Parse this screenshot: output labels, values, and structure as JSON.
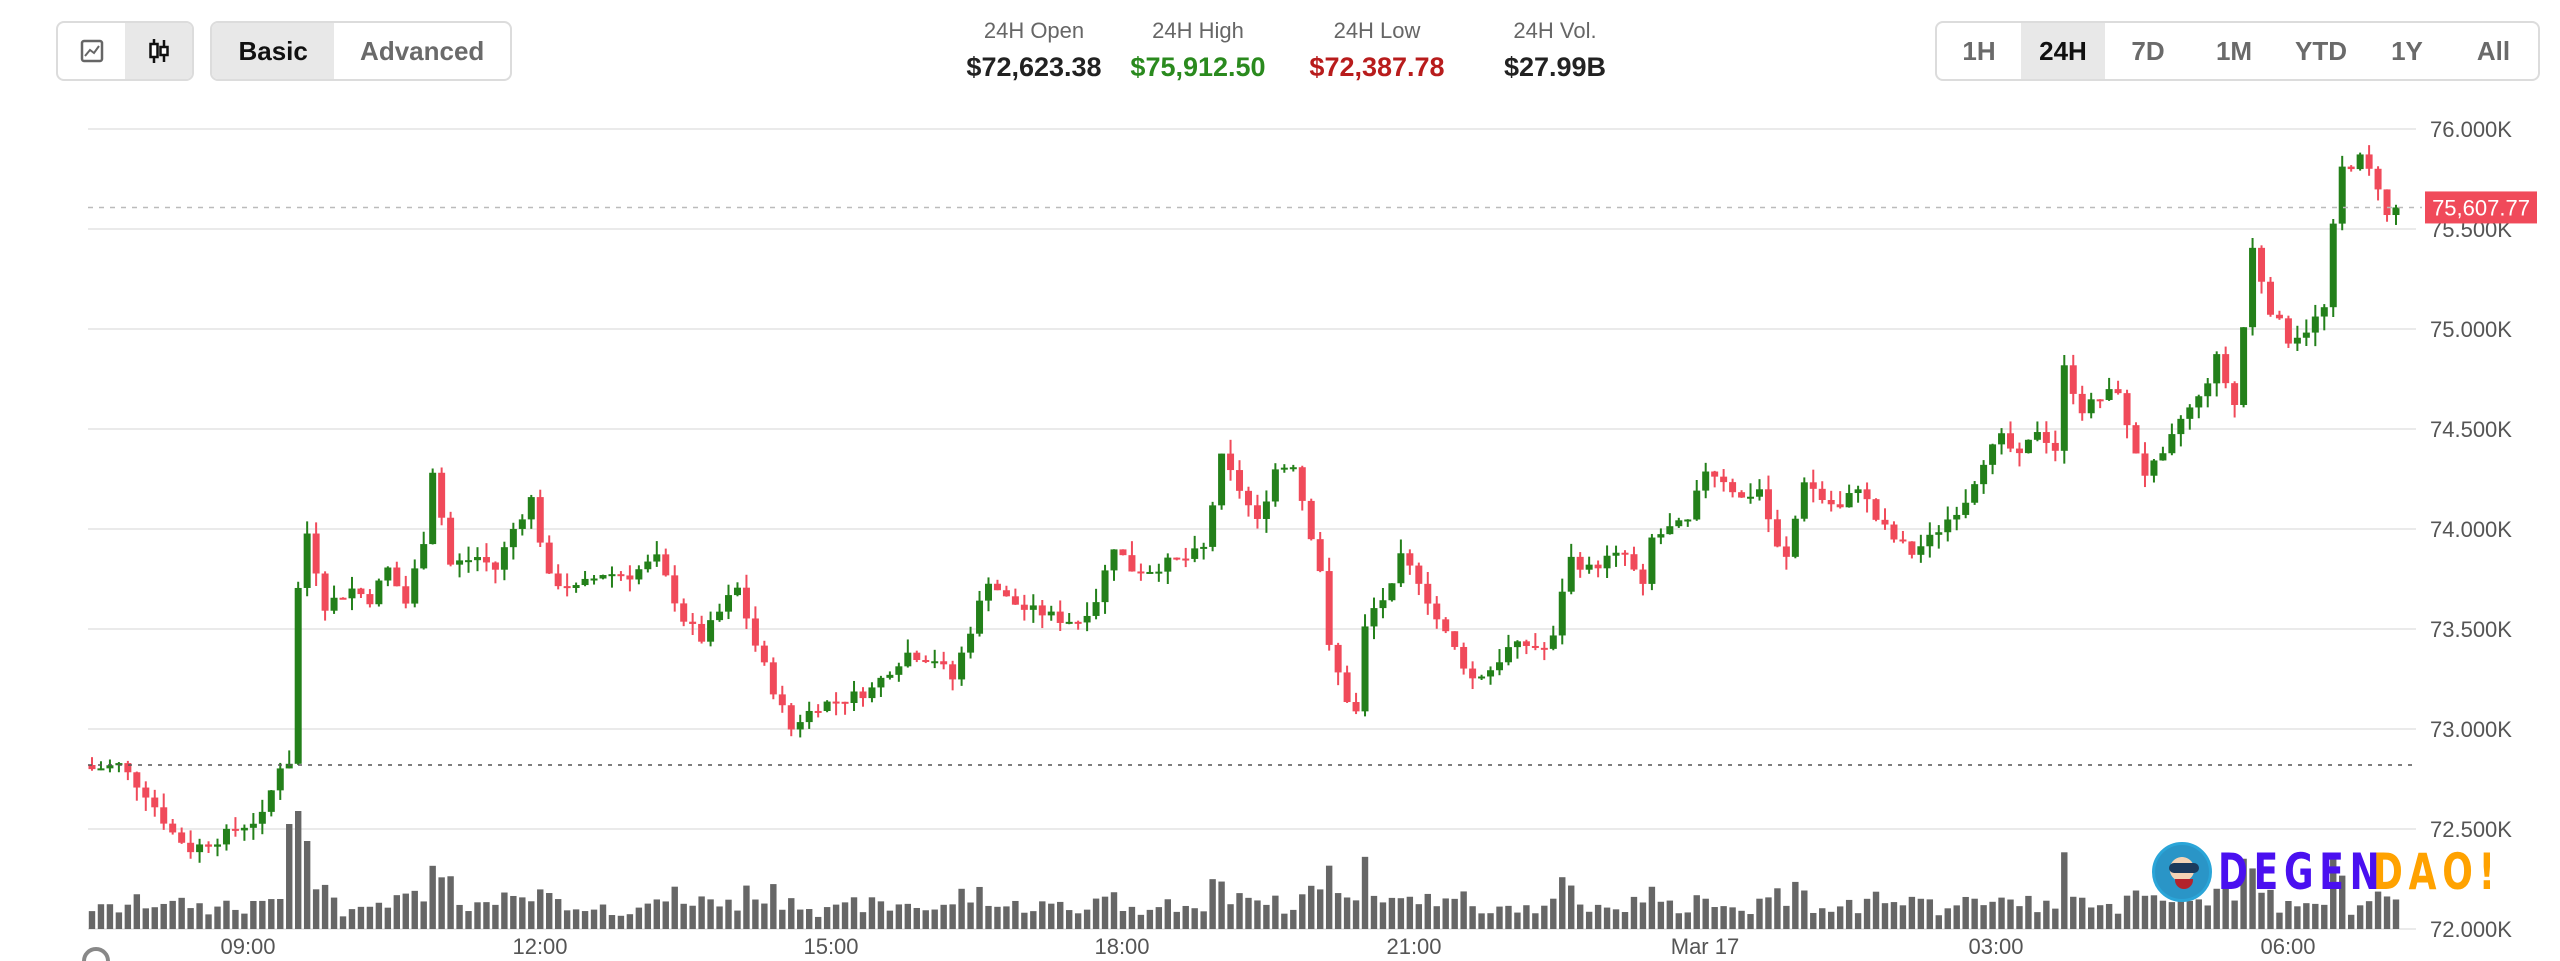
{
  "toolbar": {
    "chart_type_buttons": [
      {
        "name": "line-chart",
        "icon": "line-chart-icon",
        "active": false
      },
      {
        "name": "candlestick-chart",
        "icon": "candlestick-icon",
        "active": true
      }
    ],
    "mode_buttons": [
      {
        "label": "Basic",
        "active": true
      },
      {
        "label": "Advanced",
        "active": false
      }
    ]
  },
  "stats": [
    {
      "label": "24H Open",
      "value": "$72,623.38",
      "color": "#222222"
    },
    {
      "label": "24H High",
      "value": "$75,912.50",
      "color": "#2a8a1e"
    },
    {
      "label": "24H Low",
      "value": "$72,387.78",
      "color": "#b81c1c"
    },
    {
      "label": "24H Vol.",
      "value": "$27.99B",
      "color": "#222222"
    }
  ],
  "range_buttons": [
    {
      "label": "1H",
      "active": false
    },
    {
      "label": "24H",
      "active": true
    },
    {
      "label": "7D",
      "active": false
    },
    {
      "label": "1M",
      "active": false
    },
    {
      "label": "YTD",
      "active": false
    },
    {
      "label": "1Y",
      "active": false
    },
    {
      "label": "All",
      "active": false
    }
  ],
  "watermark": {
    "part1": "DEGEN",
    "part2": "DAO!"
  },
  "colors": {
    "up": "#23801a",
    "down": "#f04a5a",
    "volume": "#666666",
    "grid": "#e3e3e3",
    "price_tag": "#f04a5a"
  },
  "chart_data": {
    "type": "candlestick",
    "title": "",
    "xlabel": "",
    "ylabel": "",
    "ylim": [
      72000,
      76000
    ],
    "y_ticks": [
      "76.000K",
      "75.500K",
      "75.000K",
      "74.500K",
      "74.000K",
      "73.500K",
      "73.000K",
      "72.500K",
      "72.000K"
    ],
    "y_tick_values": [
      76000,
      75500,
      75000,
      74500,
      74000,
      73500,
      73000,
      72500,
      72000
    ],
    "x_ticks": [
      "09:00",
      "12:00",
      "15:00",
      "18:00",
      "21:00",
      "Mar 17",
      "03:00",
      "06:00"
    ],
    "current_price": "75,607.77",
    "current_price_value": 75607.77,
    "open_reference_price": 72820,
    "interval": "5m",
    "grid": true,
    "close_path_keypoints": [
      [
        0,
        72800
      ],
      [
        3,
        72820
      ],
      [
        6,
        72680
      ],
      [
        9,
        72480
      ],
      [
        11,
        72400
      ],
      [
        14,
        72450
      ],
      [
        17,
        72520
      ],
      [
        19,
        72560
      ],
      [
        21,
        72820
      ],
      [
        22,
        72840
      ],
      [
        23,
        73700
      ],
      [
        24,
        73980
      ],
      [
        26,
        73620
      ],
      [
        29,
        73700
      ],
      [
        31,
        73650
      ],
      [
        33,
        73800
      ],
      [
        35,
        73630
      ],
      [
        37,
        73950
      ],
      [
        38,
        74300
      ],
      [
        40,
        73820
      ],
      [
        43,
        73860
      ],
      [
        45,
        73800
      ],
      [
        47,
        74000
      ],
      [
        49,
        74150
      ],
      [
        51,
        73750
      ],
      [
        54,
        73700
      ],
      [
        57,
        73780
      ],
      [
        60,
        73770
      ],
      [
        63,
        73850
      ],
      [
        66,
        73550
      ],
      [
        68,
        73450
      ],
      [
        71,
        73650
      ],
      [
        72,
        73700
      ],
      [
        74,
        73420
      ],
      [
        76,
        73200
      ],
      [
        78,
        73000
      ],
      [
        79,
        73050
      ],
      [
        81,
        73120
      ],
      [
        84,
        73150
      ],
      [
        87,
        73200
      ],
      [
        89,
        73300
      ],
      [
        91,
        73380
      ],
      [
        94,
        73350
      ],
      [
        96,
        73250
      ],
      [
        98,
        73500
      ],
      [
        100,
        73750
      ],
      [
        102,
        73650
      ],
      [
        104,
        73600
      ],
      [
        106,
        73580
      ],
      [
        108,
        73550
      ],
      [
        110,
        73540
      ],
      [
        112,
        73650
      ],
      [
        114,
        73920
      ],
      [
        116,
        73800
      ],
      [
        118,
        73800
      ],
      [
        120,
        73830
      ],
      [
        122,
        73850
      ],
      [
        124,
        73900
      ],
      [
        126,
        74350
      ],
      [
        128,
        74200
      ],
      [
        130,
        74030
      ],
      [
        132,
        74300
      ],
      [
        134,
        74330
      ],
      [
        135,
        74150
      ],
      [
        137,
        73800
      ],
      [
        138,
        73400
      ],
      [
        140,
        73150
      ],
      [
        141,
        73080
      ],
      [
        142,
        73500
      ],
      [
        143,
        73600
      ],
      [
        145,
        73700
      ],
      [
        146,
        73850
      ],
      [
        148,
        73750
      ],
      [
        150,
        73550
      ],
      [
        152,
        73400
      ],
      [
        154,
        73250
      ],
      [
        156,
        73300
      ],
      [
        158,
        73400
      ],
      [
        160,
        73420
      ],
      [
        162,
        73400
      ],
      [
        163,
        73450
      ],
      [
        164,
        73700
      ],
      [
        165,
        73850
      ],
      [
        167,
        73800
      ],
      [
        169,
        73850
      ],
      [
        171,
        73870
      ],
      [
        173,
        73700
      ],
      [
        174,
        73950
      ],
      [
        176,
        74000
      ],
      [
        178,
        74030
      ],
      [
        180,
        74300
      ],
      [
        182,
        74250
      ],
      [
        184,
        74150
      ],
      [
        186,
        74200
      ],
      [
        188,
        73900
      ],
      [
        189,
        73850
      ],
      [
        191,
        74250
      ],
      [
        193,
        74150
      ],
      [
        195,
        74100
      ],
      [
        197,
        74220
      ],
      [
        199,
        74050
      ],
      [
        201,
        73950
      ],
      [
        203,
        73880
      ],
      [
        205,
        73950
      ],
      [
        207,
        74050
      ],
      [
        209,
        74150
      ],
      [
        211,
        74350
      ],
      [
        213,
        74450
      ],
      [
        215,
        74350
      ],
      [
        217,
        74500
      ],
      [
        219,
        74400
      ],
      [
        220,
        74800
      ],
      [
        222,
        74600
      ],
      [
        224,
        74650
      ],
      [
        226,
        74700
      ],
      [
        227,
        74500
      ],
      [
        229,
        74280
      ],
      [
        231,
        74350
      ],
      [
        233,
        74550
      ],
      [
        235,
        74650
      ],
      [
        237,
        74850
      ],
      [
        239,
        74620
      ],
      [
        241,
        75400
      ],
      [
        243,
        75100
      ],
      [
        245,
        74950
      ],
      [
        247,
        75000
      ],
      [
        249,
        75100
      ],
      [
        250,
        75500
      ],
      [
        251,
        75800
      ],
      [
        253,
        75850
      ],
      [
        255,
        75720
      ],
      [
        256,
        75560
      ],
      [
        257,
        75607.77
      ]
    ]
  }
}
